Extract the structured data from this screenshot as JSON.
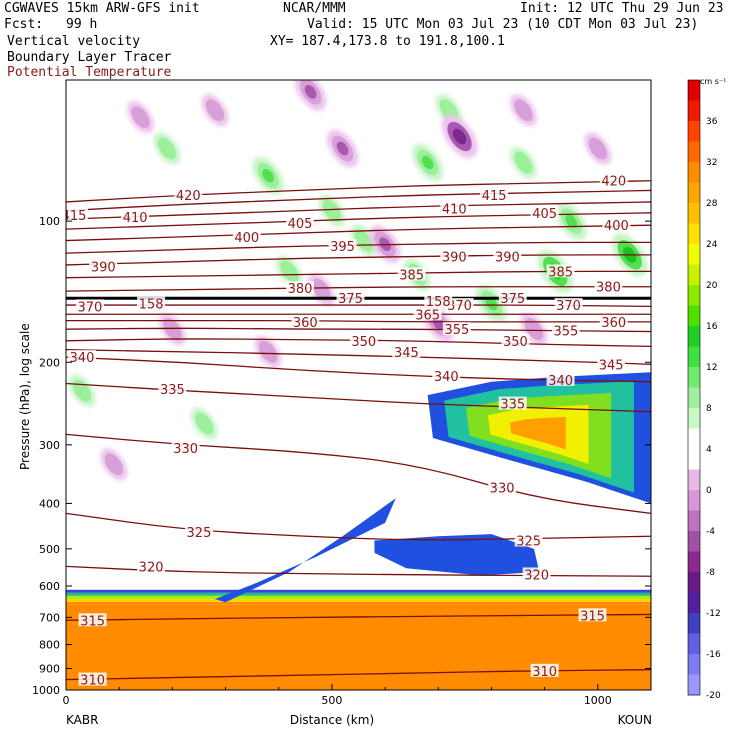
{
  "header": {
    "model": "CGWAVES 15km ARW-GFS init",
    "fcst_label": "Fcst:",
    "fcst_value": "99 h",
    "org": "NCAR/MMM",
    "init": "Init: 12 UTC Thu 29 Jun 23",
    "valid": "Valid: 15 UTC Mon 03 Jul 23 (10 CDT Mon 03 Jul 23)",
    "field1": "Vertical velocity",
    "field2": "Boundary Layer Tracer",
    "field3": "Potential Temperature",
    "xy": "XY= 187.4,173.8 to 191.8,100.1"
  },
  "colors": {
    "theta_text": "#8b1a1a",
    "theta_line": "#7a0f0f"
  },
  "chart_data": {
    "type": "heatmap",
    "title": "Vertical velocity",
    "xlabel": "Distance (km)",
    "ylabel": "Pressure (hPa), log scale",
    "x_ticks": [
      0,
      500,
      1000
    ],
    "xlim": [
      0,
      1100
    ],
    "left_station": "KABR",
    "right_station": "KOUN",
    "y_scale": "log",
    "y_ticks": [
      100,
      200,
      300,
      400,
      500,
      600,
      700,
      800,
      900,
      1000
    ],
    "ylim": [
      1000,
      50
    ],
    "colorbar": {
      "units": "cm s⁻¹",
      "labels": [
        36,
        32,
        28,
        24,
        20,
        16,
        12,
        8,
        4,
        0,
        -4,
        -8,
        -12,
        -16,
        -20
      ],
      "colors": [
        "#e00000",
        "#f01a00",
        "#ff4400",
        "#ff6a00",
        "#ff8c00",
        "#ffa600",
        "#ffc000",
        "#ffe000",
        "#f0ff00",
        "#c8f000",
        "#8cec00",
        "#50e000",
        "#20d020",
        "#40e040",
        "#70ec70",
        "#a0f0a0",
        "#c8f8c8",
        "#ffffff",
        "#ffffff",
        "#e8b8e8",
        "#d898d8",
        "#c070c0",
        "#a050a8",
        "#8a2a90",
        "#6a1a88",
        "#5020a0",
        "#4040c0",
        "#6060e0",
        "#7c7cf0",
        "#9898ff"
      ]
    },
    "theta_contours": [
      {
        "theta": 310,
        "p": [
          950,
          940,
          930,
          920,
          910,
          905
        ]
      },
      {
        "theta": 315,
        "p": [
          710,
          705,
          700,
          697,
          693,
          690
        ]
      },
      {
        "theta": 320,
        "p": [
          545,
          560,
          565,
          568,
          570,
          572
        ]
      },
      {
        "theta": 325,
        "p": [
          420,
          455,
          470,
          480,
          475,
          470
        ]
      },
      {
        "theta": 330,
        "p": [
          285,
          300,
          310,
          330,
          390,
          420
        ]
      },
      {
        "theta": 335,
        "p": [
          222,
          230,
          237,
          245,
          250,
          255
        ]
      },
      {
        "theta": 340,
        "p": [
          195,
          200,
          208,
          214,
          218,
          220
        ]
      },
      {
        "theta": 345,
        "p": [
          188,
          190,
          192,
          195,
          198,
          202
        ]
      },
      {
        "theta": 350,
        "p": [
          180,
          178,
          179,
          180,
          183,
          185
        ]
      },
      {
        "theta": 355,
        "p": [
          170,
          169,
          170,
          170,
          171,
          172
        ]
      },
      {
        "theta": 360,
        "p": [
          163,
          163,
          163,
          164,
          164,
          164
        ]
      },
      {
        "theta": 365,
        "p": [
          158,
          158,
          158,
          158,
          158,
          158
        ]
      },
      {
        "theta": 370,
        "p": [
          151,
          151,
          151,
          151,
          151,
          152
        ]
      },
      {
        "theta": 375,
        "p": [
          146,
          146,
          146,
          146,
          146,
          146
        ]
      },
      {
        "theta": 380,
        "p": [
          141,
          140,
          139,
          138,
          138,
          138
        ]
      },
      {
        "theta": 385,
        "p": [
          132,
          131,
          130,
          129,
          128,
          128
        ]
      },
      {
        "theta": 390,
        "p": [
          124,
          122,
          120,
          119,
          118,
          118
        ]
      },
      {
        "theta": 395,
        "p": [
          117,
          115,
          113,
          112,
          111,
          111
        ]
      },
      {
        "theta": 400,
        "p": [
          110,
          108,
          106,
          104,
          103,
          102
        ]
      },
      {
        "theta": 405,
        "p": [
          104,
          102,
          100,
          98,
          97,
          96
        ]
      },
      {
        "theta": 410,
        "p": [
          99,
          97,
          95,
          93,
          92,
          91
        ]
      },
      {
        "theta": 415,
        "p": [
          95,
          92,
          90,
          88,
          87,
          86
        ]
      },
      {
        "theta": 420,
        "p": [
          91,
          88,
          86,
          84,
          83,
          82
        ]
      }
    ],
    "theta_x": [
      0,
      220,
      440,
      660,
      880,
      1100
    ],
    "theta_labels": [
      {
        "text": "415",
        "x": 15,
        "p": 97
      },
      {
        "text": "410",
        "x": 130,
        "p": 98
      },
      {
        "text": "420",
        "x": 230,
        "p": 88
      },
      {
        "text": "400",
        "x": 340,
        "p": 108
      },
      {
        "text": "405",
        "x": 440,
        "p": 101
      },
      {
        "text": "395",
        "x": 520,
        "p": 113
      },
      {
        "text": "390",
        "x": 70,
        "p": 125
      },
      {
        "text": "380",
        "x": 440,
        "p": 139
      },
      {
        "text": "375",
        "x": 535,
        "p": 146
      },
      {
        "text": "385",
        "x": 650,
        "p": 130
      },
      {
        "text": "370",
        "x": 45,
        "p": 152
      },
      {
        "text": "158",
        "x": 160,
        "p": 150
      },
      {
        "text": "360",
        "x": 450,
        "p": 164
      },
      {
        "text": "365",
        "x": 680,
        "p": 158
      },
      {
        "text": "370",
        "x": 740,
        "p": 151
      },
      {
        "text": "158",
        "x": 700,
        "p": 148
      },
      {
        "text": "410",
        "x": 730,
        "p": 94
      },
      {
        "text": "415",
        "x": 805,
        "p": 88
      },
      {
        "text": "390",
        "x": 730,
        "p": 119
      },
      {
        "text": "390",
        "x": 830,
        "p": 119
      },
      {
        "text": "375",
        "x": 840,
        "p": 146
      },
      {
        "text": "405",
        "x": 900,
        "p": 96
      },
      {
        "text": "385",
        "x": 930,
        "p": 128
      },
      {
        "text": "370",
        "x": 945,
        "p": 151
      },
      {
        "text": "420",
        "x": 1030,
        "p": 82
      },
      {
        "text": "400",
        "x": 1035,
        "p": 102
      },
      {
        "text": "380",
        "x": 1020,
        "p": 138
      },
      {
        "text": "360",
        "x": 1030,
        "p": 164
      },
      {
        "text": "355",
        "x": 735,
        "p": 170
      },
      {
        "text": "350",
        "x": 845,
        "p": 180
      },
      {
        "text": "355",
        "x": 940,
        "p": 171
      },
      {
        "text": "350",
        "x": 560,
        "p": 180
      },
      {
        "text": "345",
        "x": 640,
        "p": 190
      },
      {
        "text": "340",
        "x": 30,
        "p": 195
      },
      {
        "text": "335",
        "x": 200,
        "p": 228
      },
      {
        "text": "345",
        "x": 1025,
        "p": 202
      },
      {
        "text": "340",
        "x": 715,
        "p": 214
      },
      {
        "text": "340",
        "x": 930,
        "p": 218
      },
      {
        "text": "335",
        "x": 840,
        "p": 245
      },
      {
        "text": "330",
        "x": 225,
        "p": 305
      },
      {
        "text": "330",
        "x": 820,
        "p": 370
      },
      {
        "text": "325",
        "x": 250,
        "p": 460
      },
      {
        "text": "325",
        "x": 870,
        "p": 480
      },
      {
        "text": "320",
        "x": 160,
        "p": 545
      },
      {
        "text": "320",
        "x": 885,
        "p": 567
      },
      {
        "text": "315",
        "x": 50,
        "p": 710
      },
      {
        "text": "315",
        "x": 990,
        "p": 693
      },
      {
        "text": "310",
        "x": 50,
        "p": 950
      },
      {
        "text": "310",
        "x": 900,
        "p": 910
      }
    ],
    "boundary_layer": {
      "p": 658
    },
    "tracer_plumes": [
      {
        "x": [
          300,
          420,
          520,
          620,
          600,
          470,
          360,
          280
        ],
        "p": [
          650,
          560,
          470,
          390,
          440,
          520,
          590,
          640
        ]
      },
      {
        "x": [
          580,
          700,
          800,
          880,
          890,
          780,
          640,
          580
        ],
        "p": [
          480,
          470,
          465,
          500,
          560,
          570,
          550,
          510
        ]
      },
      {
        "x": [
          680,
          800,
          920,
          1100,
          1100,
          980,
          820,
          690
        ],
        "p": [
          235,
          220,
          215,
          210,
          400,
          360,
          320,
          290
        ]
      }
    ],
    "updraft_cells": [
      {
        "x": 680,
        "p": 75,
        "w": 6
      },
      {
        "x": 720,
        "p": 58,
        "w": 4
      },
      {
        "x": 380,
        "p": 80,
        "w": 6
      },
      {
        "x": 500,
        "p": 95,
        "w": 4
      },
      {
        "x": 190,
        "p": 70,
        "w": 4
      },
      {
        "x": 860,
        "p": 75,
        "w": 4
      },
      {
        "x": 950,
        "p": 100,
        "w": 6
      },
      {
        "x": 920,
        "p": 128,
        "w": 8
      },
      {
        "x": 1060,
        "p": 118,
        "w": 8
      },
      {
        "x": 800,
        "p": 150,
        "w": 6
      },
      {
        "x": 660,
        "p": 130,
        "w": 4
      },
      {
        "x": 560,
        "p": 110,
        "w": 4
      },
      {
        "x": 260,
        "p": 270,
        "w": 4
      },
      {
        "x": 30,
        "p": 230,
        "w": 4
      },
      {
        "x": 420,
        "p": 128,
        "w": 4
      }
    ],
    "downdraft_cells": [
      {
        "x": 740,
        "p": 66,
        "w": -8
      },
      {
        "x": 520,
        "p": 70,
        "w": -6
      },
      {
        "x": 460,
        "p": 53,
        "w": -6
      },
      {
        "x": 280,
        "p": 58,
        "w": -4
      },
      {
        "x": 140,
        "p": 60,
        "w": -4
      },
      {
        "x": 860,
        "p": 58,
        "w": -4
      },
      {
        "x": 1000,
        "p": 70,
        "w": -4
      },
      {
        "x": 600,
        "p": 112,
        "w": -6
      },
      {
        "x": 480,
        "p": 140,
        "w": -4
      },
      {
        "x": 700,
        "p": 165,
        "w": -6
      },
      {
        "x": 880,
        "p": 170,
        "w": -4
      },
      {
        "x": 380,
        "p": 190,
        "w": -4
      },
      {
        "x": 90,
        "p": 330,
        "w": -4
      },
      {
        "x": 200,
        "p": 170,
        "w": -4
      }
    ]
  }
}
